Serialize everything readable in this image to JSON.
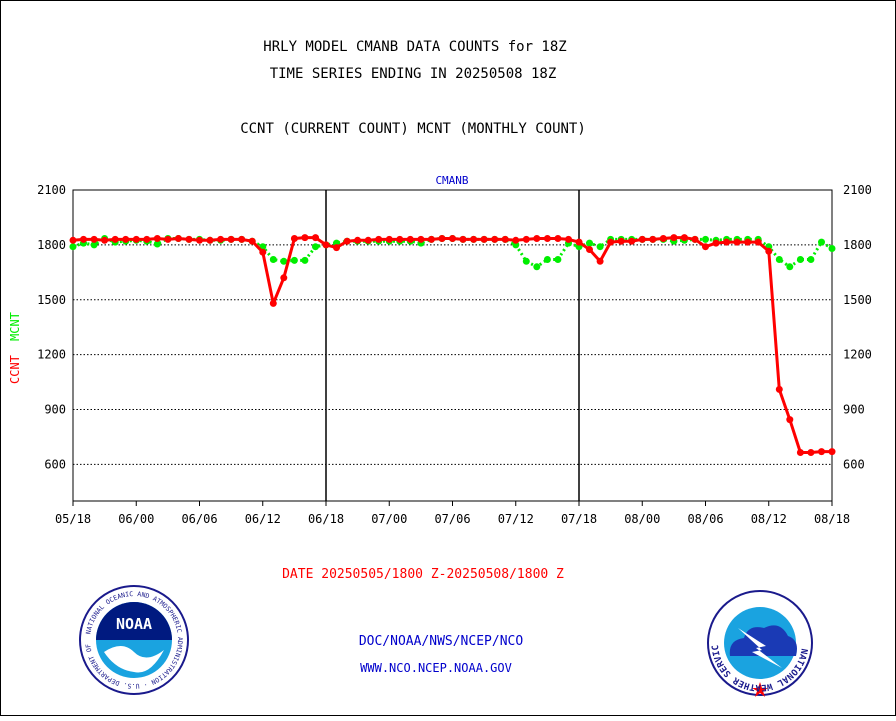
{
  "header": {
    "title_line1": "HRLY MODEL CMANB DATA COUNTS for 18Z",
    "title_line2": "TIME SERIES ENDING IN 20250508 18Z",
    "subtitle": "CCNT (CURRENT COUNT) MCNT (MONTHLY COUNT)"
  },
  "footer": {
    "date_range": "DATE 20250505/1800 Z-20250508/1800 Z",
    "link1": "DOC/NOAA/NWS/NCEP/NCO",
    "link2": "WWW.NCO.NCEP.NOAA.GOV"
  },
  "logos": {
    "noaa": {
      "text": "NOAA",
      "ring_text": "NATIONAL OCEANIC AND ATMOSPHERIC ADMINISTRATION · U.S. DEPARTMENT OF COMMERCE"
    },
    "nws": {
      "ring_text": "NATIONAL WEATHER SERVICE"
    }
  },
  "colors": {
    "ccnt": "#ff0000",
    "mcnt": "#00ee00",
    "text": "#000000",
    "panel_label": "#0000cc",
    "date_label": "#ff0000",
    "links": "#0000cc"
  },
  "chart_data": {
    "type": "line",
    "panel_label": "CMANB",
    "ylabel_ccnt": "CCNT",
    "ylabel_mcnt": "MCNT",
    "ylim": [
      400,
      2100
    ],
    "yticks": [
      600,
      900,
      1200,
      1500,
      1800,
      2100
    ],
    "xlim": [
      0,
      72
    ],
    "xticks": [
      {
        "h": 0,
        "label": "05/18"
      },
      {
        "h": 6,
        "label": "06/00"
      },
      {
        "h": 12,
        "label": "06/06"
      },
      {
        "h": 18,
        "label": "06/12"
      },
      {
        "h": 24,
        "label": "06/18"
      },
      {
        "h": 30,
        "label": "07/00"
      },
      {
        "h": 36,
        "label": "07/06"
      },
      {
        "h": 42,
        "label": "07/12"
      },
      {
        "h": 48,
        "label": "07/18"
      },
      {
        "h": 54,
        "label": "08/00"
      },
      {
        "h": 60,
        "label": "08/06"
      },
      {
        "h": 66,
        "label": "08/12"
      },
      {
        "h": 72,
        "label": "08/18"
      }
    ],
    "day_separators": [
      24,
      48
    ],
    "grid": "horizontal dotted",
    "series": [
      {
        "name": "CCNT",
        "x": [
          0,
          1,
          2,
          3,
          4,
          5,
          6,
          7,
          8,
          9,
          10,
          11,
          12,
          13,
          14,
          15,
          16,
          17,
          18,
          19,
          20,
          21,
          22,
          23,
          24,
          25,
          26,
          27,
          28,
          29,
          30,
          31,
          32,
          33,
          34,
          35,
          36,
          37,
          38,
          39,
          40,
          41,
          42,
          43,
          44,
          45,
          46,
          47,
          48,
          49,
          50,
          51,
          52,
          53,
          54,
          55,
          56,
          57,
          58,
          59,
          60,
          61,
          62,
          63,
          64,
          65,
          66,
          67,
          68,
          69,
          70,
          71,
          72
        ],
        "values": [
          1825,
          1830,
          1830,
          1825,
          1830,
          1830,
          1830,
          1830,
          1835,
          1830,
          1835,
          1830,
          1825,
          1825,
          1830,
          1830,
          1830,
          1820,
          1760,
          1480,
          1620,
          1835,
          1840,
          1840,
          1800,
          1785,
          1820,
          1825,
          1825,
          1830,
          1830,
          1830,
          1830,
          1830,
          1830,
          1835,
          1835,
          1830,
          1830,
          1830,
          1830,
          1830,
          1825,
          1830,
          1835,
          1835,
          1835,
          1830,
          1815,
          1775,
          1710,
          1815,
          1820,
          1820,
          1830,
          1830,
          1835,
          1840,
          1840,
          1830,
          1790,
          1810,
          1815,
          1815,
          1815,
          1815,
          1765,
          1010,
          845,
          665,
          665,
          670,
          670
        ]
      },
      {
        "name": "MCNT",
        "x": [
          0,
          1,
          2,
          3,
          4,
          5,
          6,
          7,
          8,
          9,
          10,
          11,
          12,
          13,
          14,
          15,
          16,
          17,
          18,
          19,
          20,
          21,
          22,
          23,
          24,
          25,
          26,
          27,
          28,
          29,
          30,
          31,
          32,
          33,
          34,
          35,
          36,
          37,
          38,
          39,
          40,
          41,
          42,
          43,
          44,
          45,
          46,
          47,
          48,
          49,
          50,
          51,
          52,
          53,
          54,
          55,
          56,
          57,
          58,
          59,
          60,
          61,
          62,
          63,
          64,
          65,
          66,
          67,
          68,
          69,
          70,
          71,
          72
        ],
        "values": [
          1790,
          1810,
          1800,
          1835,
          1815,
          1820,
          1825,
          1820,
          1805,
          1835,
          1835,
          1830,
          1830,
          1825,
          1825,
          1830,
          1830,
          1820,
          1790,
          1720,
          1710,
          1715,
          1715,
          1790,
          1800,
          1810,
          1820,
          1820,
          1820,
          1820,
          1820,
          1820,
          1820,
          1810,
          1830,
          1835,
          1835,
          1830,
          1830,
          1830,
          1830,
          1830,
          1800,
          1710,
          1680,
          1720,
          1720,
          1810,
          1790,
          1810,
          1790,
          1830,
          1830,
          1830,
          1830,
          1830,
          1830,
          1820,
          1825,
          1830,
          1830,
          1825,
          1830,
          1830,
          1830,
          1830,
          1790,
          1720,
          1680,
          1720,
          1720,
          1815,
          1780
        ]
      }
    ]
  }
}
